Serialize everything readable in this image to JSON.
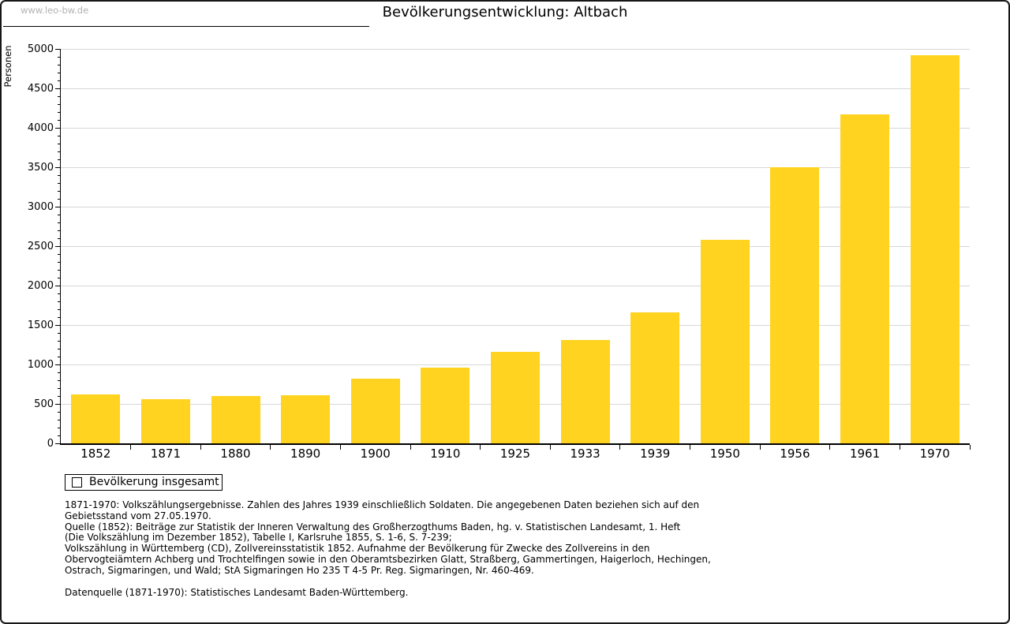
{
  "watermark": "www.leo-bw.de",
  "title": "Bevölkerungsentwicklung: Altbach",
  "chart_data": {
    "type": "bar",
    "title": "Bevölkerungsentwicklung: Altbach",
    "xlabel": "",
    "ylabel": "Personen",
    "categories": [
      "1852",
      "1871",
      "1880",
      "1890",
      "1900",
      "1910",
      "1925",
      "1933",
      "1939",
      "1950",
      "1956",
      "1961",
      "1970"
    ],
    "series": [
      {
        "name": "Bevölkerung insgesamt",
        "values": [
          625,
          565,
          605,
          610,
          825,
          965,
          1160,
          1310,
          1665,
          2580,
          3505,
          4175,
          4925
        ]
      }
    ],
    "ylim": [
      0,
      5000
    ],
    "ytick_step": 500,
    "ytick_minor_step": 100,
    "grid": true,
    "legend_position": "bottom-left",
    "bar_color": "#FFD320"
  },
  "legend": {
    "label": "Bevölkerung insgesamt",
    "swatch_color": "#FFD320"
  },
  "footnotes": {
    "lines": [
      "1871-1970: Volkszählungsergebnisse. Zahlen des Jahres 1939 einschließlich Soldaten. Die angegebenen Daten beziehen sich auf den",
      "Gebietsstand vom 27.05.1970.",
      "Quelle (1852): Beiträge zur Statistik der Inneren Verwaltung des Großherzogthums Baden, hg. v. Statistischen Landesamt, 1. Heft",
      "(Die Volkszählung im Dezember 1852), Tabelle I, Karlsruhe 1855, S. 1-6, S. 7-239;",
      "Volkszählung in Württemberg (CD), Zollvereinsstatistik 1852. Aufnahme der Bevölkerung für Zwecke des Zollvereins in den",
      "Obervogteiämtern Achberg und Trochtelfingen sowie in den Oberamtsbezirken Glatt, Straßberg, Gammertingen, Haigerloch, Hechingen,",
      "Ostrach, Sigmaringen, und Wald; StA Sigmaringen Ho 235 T 4-5 Pr. Reg. Sigmaringen, Nr. 460-469."
    ],
    "datasource": "Datenquelle (1871-1970): Statistisches Landesamt Baden-Württemberg."
  },
  "colors": {
    "bar": "#FFD320",
    "grid": "#d7d7d7",
    "axis": "#000000",
    "watermark_text": "#b3b3b3"
  }
}
